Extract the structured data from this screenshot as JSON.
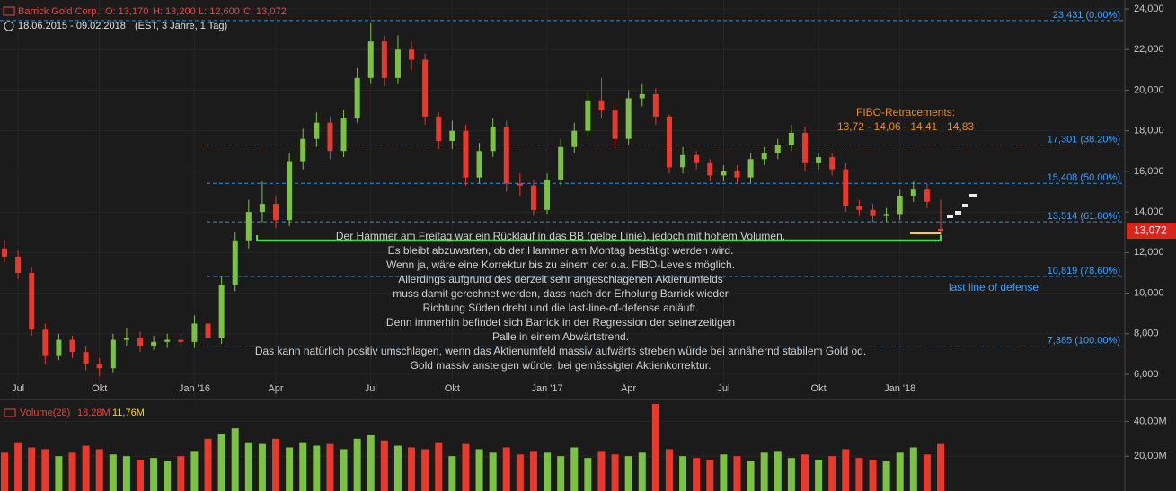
{
  "header": {
    "name": "Barrick Gold Corp.",
    "open": "O: 13,170",
    "high": "H: 13,200",
    "low": "L: 12,600",
    "close": "C: 13,072",
    "range": "18.06.2015 - 09.02.2018",
    "settings": "(EST, 3 Jahre, 1 Tag)"
  },
  "chart_data": [
    {
      "type": "candlestick",
      "categories": [
        null,
        "Jul",
        null,
        null,
        null,
        null,
        null,
        "Okt",
        null,
        null,
        null,
        null,
        null,
        null,
        "Jan '16",
        null,
        null,
        null,
        null,
        null,
        "Apr",
        null,
        null,
        null,
        null,
        null,
        null,
        "Jul",
        null,
        null,
        null,
        null,
        null,
        "Okt",
        null,
        null,
        null,
        null,
        null,
        null,
        "Jan '17",
        null,
        null,
        null,
        null,
        null,
        "Apr",
        null,
        null,
        null,
        null,
        null,
        null,
        "Jul",
        null,
        null,
        null,
        null,
        null,
        null,
        "Okt",
        null,
        null,
        null,
        null,
        null,
        "Jan '18",
        null,
        null,
        null
      ],
      "open": [
        12200,
        11800,
        11000,
        8200,
        6900,
        7700,
        7100,
        6500,
        6300,
        7700,
        7800,
        7400,
        7600,
        7700,
        7600,
        8500,
        7800,
        10400,
        12600,
        14000,
        14400,
        13600,
        16500,
        17600,
        18400,
        17000,
        18600,
        20600,
        22400,
        20600,
        22000,
        21500,
        18700,
        17500,
        18000,
        15700,
        17000,
        18200,
        15400,
        15300,
        14100,
        15600,
        17200,
        18000,
        19500,
        19000,
        17600,
        19600,
        19800,
        18700,
        16200,
        16800,
        16400,
        15800,
        16000,
        15700,
        16600,
        16900,
        17300,
        17900,
        16400,
        16700,
        16100,
        14300,
        14100,
        13800,
        13900,
        14800,
        15100,
        13170
      ],
      "high": [
        12600,
        12100,
        11300,
        8500,
        8000,
        7900,
        7400,
        6800,
        8000,
        8300,
        8100,
        7900,
        8000,
        8000,
        8900,
        8700,
        10800,
        13000,
        14600,
        15500,
        14800,
        16900,
        18100,
        18900,
        18700,
        19000,
        21100,
        23300,
        22700,
        22700,
        22400,
        21800,
        18900,
        18500,
        18300,
        17400,
        18600,
        18500,
        15900,
        15600,
        15900,
        17600,
        18400,
        19900,
        20600,
        19300,
        20000,
        20300,
        20100,
        18800,
        17200,
        17000,
        16600,
        16300,
        16300,
        16900,
        17200,
        17600,
        18300,
        18200,
        16900,
        16900,
        16400,
        14600,
        14400,
        14200,
        15100,
        15500,
        15400,
        14600
      ],
      "low": [
        11500,
        10700,
        7900,
        6500,
        6700,
        6800,
        6200,
        5900,
        6100,
        7400,
        7100,
        7200,
        7300,
        7300,
        7300,
        7400,
        7500,
        10100,
        12200,
        13500,
        13200,
        13300,
        16100,
        17200,
        16600,
        16700,
        18400,
        20300,
        20200,
        20300,
        21000,
        18300,
        17100,
        17100,
        15300,
        15400,
        16700,
        15000,
        14800,
        13800,
        13900,
        15300,
        16900,
        17700,
        18600,
        17200,
        17300,
        19200,
        18300,
        15900,
        15900,
        16100,
        15500,
        15500,
        15400,
        15400,
        16300,
        16600,
        17000,
        16000,
        16100,
        15800,
        14000,
        13800,
        13500,
        13500,
        13600,
        14500,
        14200,
        12600
      ],
      "close": [
        11800,
        11000,
        8200,
        6900,
        7700,
        7100,
        6500,
        6300,
        7700,
        7800,
        7400,
        7600,
        7700,
        7600,
        8500,
        7800,
        10400,
        12600,
        14000,
        14400,
        13600,
        16500,
        17600,
        18400,
        17000,
        18600,
        20600,
        22400,
        20600,
        22000,
        21500,
        18700,
        17500,
        18000,
        15700,
        17000,
        18200,
        15400,
        15300,
        14100,
        15600,
        17200,
        18000,
        19500,
        19000,
        17600,
        19600,
        19800,
        18700,
        16200,
        16800,
        16400,
        15800,
        16000,
        15700,
        16600,
        16900,
        17300,
        17900,
        16400,
        16700,
        16100,
        14300,
        14100,
        13800,
        13900,
        14800,
        15100,
        14500,
        13072
      ],
      "up_color": "#7cc242",
      "down_color": "#e8392c",
      "ylim": [
        6000,
        24000
      ],
      "yticks": [
        {
          "value": 6000,
          "label": "6,000"
        },
        {
          "value": 8000,
          "label": "8,000"
        },
        {
          "value": 10000,
          "label": "10,000"
        },
        {
          "value": 12000,
          "label": "12,000"
        },
        {
          "value": 14000,
          "label": "14,000"
        },
        {
          "value": 16000,
          "label": "16,000"
        },
        {
          "value": 18000,
          "label": "18,000"
        },
        {
          "value": 20000,
          "label": "20,000"
        },
        {
          "value": 22000,
          "label": "22,000"
        },
        {
          "value": 24000,
          "label": "24,000"
        }
      ],
      "fib_levels": [
        {
          "value": 23431,
          "label": "23,431 (0.00%)"
        },
        {
          "value": 17301,
          "label": "17,301 (38.20%)"
        },
        {
          "value": 15408,
          "label": "15,408 (50.00%)"
        },
        {
          "value": 13514,
          "label": "13,514 (61.80%)"
        },
        {
          "value": 10819,
          "label": "10,819 (78.60%)"
        },
        {
          "value": 7385,
          "label": "7,385 (100.00%)"
        }
      ],
      "last_price": {
        "value": 13072,
        "label": "13,072"
      },
      "annotations": {
        "fibo_title": "FIBO-Retracements:",
        "fibo_values": "13,72 · 14,06 · 14,41 · 14,83",
        "defense": "last line of defense",
        "comment": [
          "Der Hammer am Freitag war ein Rücklauf in das BB (gelbe Linie), jedoch mit hohem Volumen.",
          "Es bleibt abzuwarten, ob der Hammer am Montag bestätigt werden wird.",
          "Wenn ja, wäre eine Korrektur bis zu einem der o.a. FIBO-Levels möglich.",
          "Allerdings aufgrund des derzeit sehr angeschlagenen Aktienumfelds",
          "muss damit gerechnet werden, dass nach der Erholung Barrick wieder",
          "Richtung Süden dreht und die last-line-of-defense anläuft.",
          "Denn immerhin befindet sich Barrick in der Regression der seinerzeitigen",
          "Palle in einem Abwärtstrend.",
          "Das kann natürlich positiv umschlagen, wenn das Aktienumfeld massiv aufwärts streben würde bei annähernd stabilem Gold od.",
          "Gold massiv ansteigen würde, bei gemässigter Aktienkorrektur."
        ]
      }
    },
    {
      "type": "bar",
      "name": "Volume(28)",
      "readouts": [
        "18,28M",
        "11,76M"
      ],
      "values": [
        22,
        28,
        25,
        24,
        20,
        22,
        26,
        24,
        21,
        20,
        18,
        19,
        17,
        20,
        23,
        30,
        33,
        36,
        28,
        27,
        30,
        25,
        28,
        26,
        27,
        24,
        30,
        32,
        29,
        26,
        25,
        24,
        28,
        20,
        27,
        24,
        22,
        25,
        21,
        23,
        22,
        20,
        25,
        19,
        23,
        21,
        20,
        22,
        50,
        24,
        20,
        19,
        18,
        21,
        20,
        17,
        22,
        23,
        19,
        21,
        18,
        20,
        24,
        19,
        18,
        17,
        22,
        25,
        21,
        27
      ],
      "ylim": [
        0,
        50
      ],
      "yticks": [
        {
          "value": 20,
          "label": "20,00M"
        },
        {
          "value": 40,
          "label": "40,00M"
        }
      ]
    }
  ]
}
